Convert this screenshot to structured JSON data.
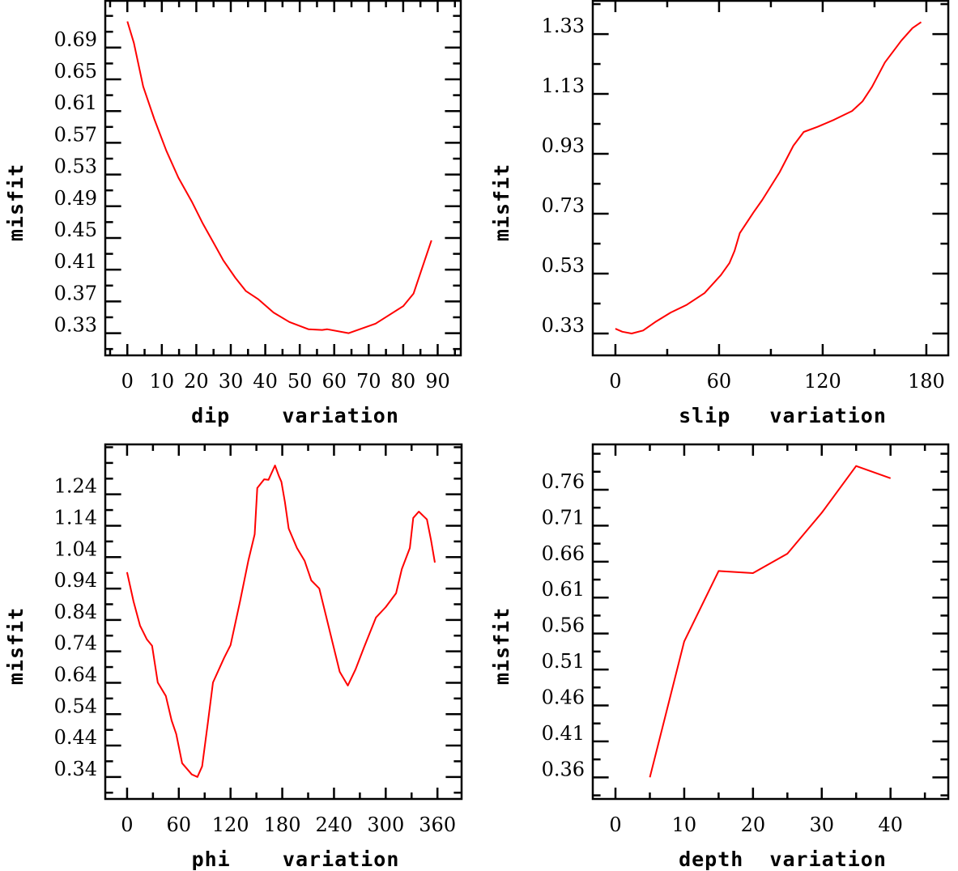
{
  "series_color": "#ff0000",
  "chart_data": [
    {
      "type": "line",
      "id": "dip",
      "xlabel": "dip    variation",
      "ylabel": "misfit",
      "xlim": [
        -6.4,
        96.7
      ],
      "ylim": [
        0.302,
        0.749
      ],
      "xticks": [
        0,
        10,
        20,
        30,
        40,
        50,
        60,
        70,
        80,
        90
      ],
      "xtick_labels": [
        "0",
        "10",
        "20",
        "30",
        "40",
        "50",
        "60",
        "70",
        "80",
        "90"
      ],
      "xminor": 5,
      "yticks": [
        0.33,
        0.37,
        0.41,
        0.45,
        0.49,
        0.53,
        0.57,
        0.61,
        0.65,
        0.69
      ],
      "ytick_labels": [
        "0.33",
        "0.37",
        "0.41",
        "0.45",
        "0.49",
        "0.53",
        "0.57",
        "0.61",
        "0.65",
        "0.69"
      ],
      "yminor": 0.02,
      "grid": false,
      "series": [
        {
          "name": "misfit",
          "x": [
            0,
            1.9,
            4.6,
            7.8,
            11.3,
            14.8,
            18.8,
            21.9,
            25,
            27.8,
            31.3,
            34.4,
            37.9,
            42.4,
            47,
            52.5,
            56.5,
            57.9,
            64.2,
            72,
            80,
            83,
            85.4,
            88.2
          ],
          "y": [
            0.723,
            0.696,
            0.641,
            0.6,
            0.56,
            0.526,
            0.495,
            0.468,
            0.444,
            0.422,
            0.4,
            0.383,
            0.373,
            0.356,
            0.344,
            0.335,
            0.334,
            0.335,
            0.33,
            0.342,
            0.364,
            0.38,
            0.411,
            0.447
          ]
        }
      ]
    },
    {
      "type": "line",
      "id": "slip",
      "xlabel": "slip   variation",
      "ylabel": "misfit",
      "xlim": [
        -13.1,
        192.7
      ],
      "ylim": [
        0.257,
        1.441
      ],
      "xticks": [
        0,
        60,
        120,
        180
      ],
      "xtick_labels": [
        "0",
        "60",
        "120",
        "180"
      ],
      "xminor": 30,
      "yticks": [
        0.33,
        0.53,
        0.73,
        0.93,
        1.13,
        1.33
      ],
      "ytick_labels": [
        "0.33",
        "0.53",
        "0.73",
        "0.93",
        "1.13",
        "1.33"
      ],
      "yminor": 0.1,
      "grid": false,
      "series": [
        {
          "name": "misfit",
          "x": [
            0,
            4,
            9.4,
            16,
            23,
            32,
            41,
            51.6,
            61,
            66,
            69,
            72,
            76,
            80,
            85,
            95,
            103,
            109,
            117,
            126.6,
            137,
            143,
            148.6,
            156,
            165.5,
            172,
            177
          ],
          "y": [
            0.346,
            0.336,
            0.33,
            0.34,
            0.368,
            0.4,
            0.425,
            0.465,
            0.525,
            0.565,
            0.606,
            0.665,
            0.7,
            0.735,
            0.776,
            0.868,
            0.957,
            1.003,
            1.02,
            1.044,
            1.073,
            1.105,
            1.154,
            1.235,
            1.308,
            1.35,
            1.37
          ]
        }
      ]
    },
    {
      "type": "line",
      "id": "phi",
      "xlabel": "phi    variation",
      "ylabel": "misfit",
      "xlim": [
        -25.3,
        388
      ],
      "ylim": [
        0.27,
        1.399
      ],
      "xticks": [
        0,
        60,
        120,
        180,
        240,
        300,
        360
      ],
      "xtick_labels": [
        "0",
        "60",
        "120",
        "180",
        "240",
        "300",
        "360"
      ],
      "xminor": 30,
      "yticks": [
        0.34,
        0.44,
        0.54,
        0.64,
        0.74,
        0.84,
        0.94,
        1.04,
        1.14,
        1.24
      ],
      "ytick_labels": [
        "0.34",
        "0.44",
        "0.54",
        "0.64",
        "0.74",
        "0.84",
        "0.94",
        "1.04",
        "1.14",
        "1.24"
      ],
      "yminor": 0.05,
      "grid": false,
      "series": [
        {
          "name": "misfit",
          "x": [
            0,
            7.5,
            15,
            23,
            29,
            35.6,
            45,
            51.6,
            57,
            63.8,
            75,
            81.6,
            87,
            93.7,
            99.6,
            112.5,
            120,
            131,
            140.6,
            148,
            151,
            159,
            164,
            171.6,
            176,
            179,
            183,
            187.5,
            197,
            206,
            213.7,
            223,
            230.6,
            239,
            246.6,
            256,
            265,
            274.7,
            288.7,
            300,
            312,
            318.7,
            328,
            331.9,
            338.4,
            347.8,
            352.5,
            357
          ],
          "y": [
            0.992,
            0.899,
            0.822,
            0.778,
            0.758,
            0.641,
            0.598,
            0.52,
            0.477,
            0.384,
            0.348,
            0.34,
            0.374,
            0.513,
            0.641,
            0.719,
            0.76,
            0.899,
            1.028,
            1.113,
            1.26,
            1.288,
            1.286,
            1.332,
            1.299,
            1.28,
            1.216,
            1.131,
            1.069,
            1.028,
            0.966,
            0.94,
            0.855,
            0.76,
            0.675,
            0.631,
            0.683,
            0.752,
            0.848,
            0.881,
            0.925,
            1.002,
            1.069,
            1.165,
            1.185,
            1.16,
            1.095,
            1.023
          ]
        }
      ]
    },
    {
      "type": "line",
      "id": "depth",
      "xlabel": "depth  variation",
      "ylabel": "misfit",
      "xlim": [
        -3.3,
        48.4
      ],
      "ylim": [
        0.33,
        0.823
      ],
      "xticks": [
        0,
        10,
        20,
        30,
        40
      ],
      "xtick_labels": [
        "0",
        "10",
        "20",
        "30",
        "40"
      ],
      "xminor": 5,
      "yticks": [
        0.36,
        0.41,
        0.46,
        0.51,
        0.56,
        0.61,
        0.66,
        0.71,
        0.76
      ],
      "ytick_labels": [
        "0.36",
        "0.41",
        "0.46",
        "0.51",
        "0.56",
        "0.61",
        "0.66",
        "0.71",
        "0.76"
      ],
      "yminor": 0.025,
      "grid": false,
      "series": [
        {
          "name": "misfit",
          "x": [
            5,
            10,
            15,
            20,
            25,
            30,
            35,
            40
          ],
          "y": [
            0.36,
            0.549,
            0.647,
            0.644,
            0.671,
            0.728,
            0.793,
            0.776
          ]
        }
      ]
    }
  ]
}
